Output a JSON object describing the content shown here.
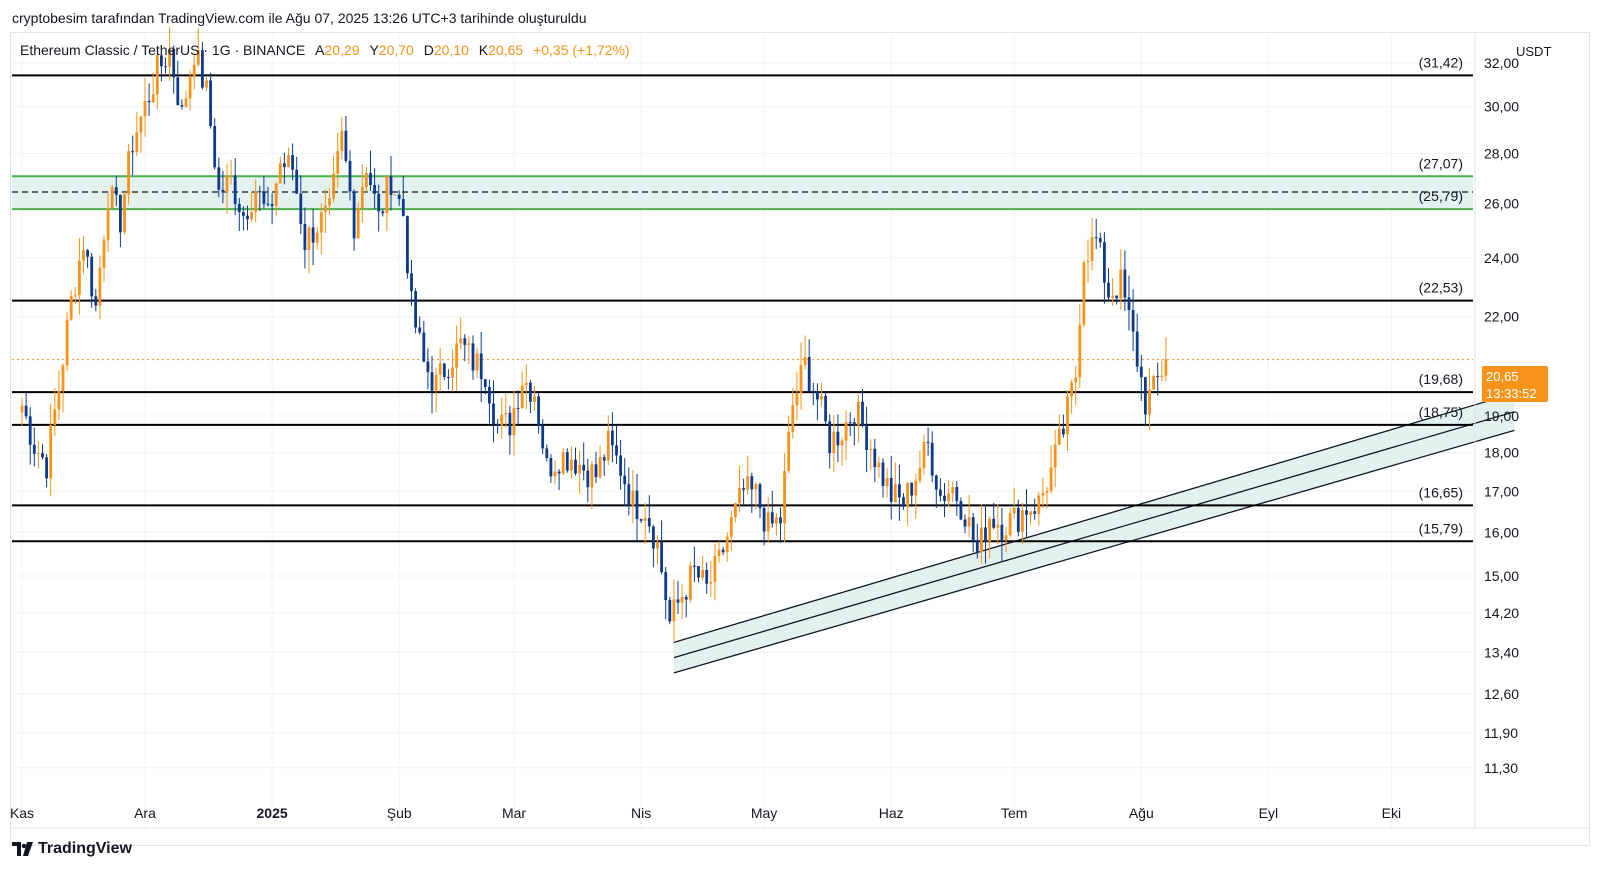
{
  "header": {
    "text": "cryptobesim tarafından TradingView.com ile Ağu 07, 2025 13:26 UTC+3 tarihinde oluşturuldu"
  },
  "legend": {
    "symbol": "Ethereum Classic / TetherUS · 1G · BINANCE",
    "o_label": "A",
    "o_value": "20,29",
    "h_label": "Y",
    "h_value": "20,70",
    "l_label": "D",
    "l_value": "20,10",
    "c_label": "K",
    "c_value": "20,65",
    "change": "+0,35 (+1,72%)"
  },
  "price_axis": {
    "currency": "USDT",
    "ticks": [
      "32,00",
      "30,00",
      "28,00",
      "26,00",
      "24,00",
      "22,00",
      "19,00",
      "18,00",
      "17,00",
      "16,00",
      "15,00",
      "14,20",
      "13,40",
      "12,60",
      "11,90",
      "11,30"
    ]
  },
  "current_price": {
    "price": "20,65",
    "countdown": "13:33:52"
  },
  "time_axis": [
    "Kas",
    "Ara",
    "2025",
    "Şub",
    "Mar",
    "Nis",
    "May",
    "Haz",
    "Tem",
    "Ağu",
    "Eyl",
    "Eki"
  ],
  "footer": {
    "brand": "TradingView"
  },
  "colors": {
    "up": "#f7931a",
    "down": "#0d3a8f",
    "level": "#000000",
    "zone_border": "#4caf50",
    "zone_fill": "#e3f2ef",
    "channel_fill": "#e3f2ef"
  },
  "chart_data": {
    "type": "candlestick",
    "title": "",
    "xlabel": "",
    "ylabel": "",
    "ylim": [
      11.0,
      33.5
    ],
    "y_scale": "log",
    "grid": true,
    "horizontal_levels": [
      {
        "value": 31.42,
        "label": "(31,42)"
      },
      {
        "value": 27.07,
        "label": "(27,07)"
      },
      {
        "value": 25.79,
        "label": "(25,79)"
      },
      {
        "value": 22.53,
        "label": "(22,53)"
      },
      {
        "value": 19.68,
        "label": "(19,68)"
      },
      {
        "value": 18.75,
        "label": "(18,75)"
      },
      {
        "value": 16.65,
        "label": "(16,65)"
      },
      {
        "value": 15.79,
        "label": "(15,79)"
      }
    ],
    "resistance_zone": {
      "upper": 27.07,
      "lower": 25.79,
      "mid": 26.45
    },
    "rising_channel": {
      "start": {
        "date": "2025-04-09",
        "upper": 13.6,
        "lower": 13.0
      },
      "end": {
        "date": "2025-10-31",
        "upper": 19.65,
        "lower": 18.6
      }
    },
    "series": [
      {
        "name": "",
        "points": [
          [
            "2024-11-01",
            19.3
          ],
          [
            "2024-11-04",
            18.2
          ],
          [
            "2024-11-07",
            17.7
          ],
          [
            "2024-11-10",
            19.8
          ],
          [
            "2024-11-13",
            22.5
          ],
          [
            "2024-11-16",
            24.6
          ],
          [
            "2024-11-19",
            22.3
          ],
          [
            "2024-11-22",
            26.4
          ],
          [
            "2024-11-25",
            25.4
          ],
          [
            "2024-11-28",
            28.5
          ],
          [
            "2024-12-01",
            30.0
          ],
          [
            "2024-12-04",
            31.6
          ],
          [
            "2024-12-07",
            32.6
          ],
          [
            "2024-12-10",
            29.6
          ],
          [
            "2024-12-13",
            32.6
          ],
          [
            "2024-12-16",
            30.6
          ],
          [
            "2024-12-19",
            26.4
          ],
          [
            "2024-12-22",
            26.9
          ],
          [
            "2024-12-25",
            25.6
          ],
          [
            "2024-12-28",
            26.6
          ],
          [
            "2024-12-31",
            25.4
          ],
          [
            "2025-01-03",
            27.6
          ],
          [
            "2025-01-06",
            27.4
          ],
          [
            "2025-01-09",
            24.6
          ],
          [
            "2025-01-12",
            25.2
          ],
          [
            "2025-01-15",
            25.6
          ],
          [
            "2025-01-18",
            28.6
          ],
          [
            "2025-01-21",
            25.3
          ],
          [
            "2025-01-24",
            27.6
          ],
          [
            "2025-01-27",
            25.4
          ],
          [
            "2025-01-30",
            27.0
          ],
          [
            "2025-02-02",
            25.6
          ],
          [
            "2025-02-04",
            22.3
          ],
          [
            "2025-02-07",
            20.5
          ],
          [
            "2025-02-10",
            19.9
          ],
          [
            "2025-02-13",
            20.6
          ],
          [
            "2025-02-16",
            21.1
          ],
          [
            "2025-02-19",
            20.6
          ],
          [
            "2025-02-22",
            20.3
          ],
          [
            "2025-02-25",
            18.7
          ],
          [
            "2025-02-28",
            18.8
          ],
          [
            "2025-03-03",
            20.1
          ],
          [
            "2025-03-06",
            19.7
          ],
          [
            "2025-03-09",
            17.6
          ],
          [
            "2025-03-12",
            17.9
          ],
          [
            "2025-03-15",
            17.9
          ],
          [
            "2025-03-18",
            17.6
          ],
          [
            "2025-03-21",
            17.4
          ],
          [
            "2025-03-24",
            18.2
          ],
          [
            "2025-03-27",
            17.6
          ],
          [
            "2025-03-30",
            16.7
          ],
          [
            "2025-04-02",
            16.6
          ],
          [
            "2025-04-05",
            15.7
          ],
          [
            "2025-04-08",
            14.0
          ],
          [
            "2025-04-11",
            14.6
          ],
          [
            "2025-04-14",
            15.1
          ],
          [
            "2025-04-17",
            14.7
          ],
          [
            "2025-04-20",
            15.3
          ],
          [
            "2025-04-23",
            16.2
          ],
          [
            "2025-04-26",
            17.0
          ],
          [
            "2025-04-29",
            16.9
          ],
          [
            "2025-05-02",
            16.1
          ],
          [
            "2025-05-05",
            16.3
          ],
          [
            "2025-05-08",
            19.3
          ],
          [
            "2025-05-11",
            20.5
          ],
          [
            "2025-05-14",
            19.5
          ],
          [
            "2025-05-17",
            18.3
          ],
          [
            "2025-05-20",
            18.6
          ],
          [
            "2025-05-23",
            19.2
          ],
          [
            "2025-05-26",
            18.5
          ],
          [
            "2025-05-29",
            17.6
          ],
          [
            "2025-06-01",
            16.9
          ],
          [
            "2025-06-04",
            16.7
          ],
          [
            "2025-06-07",
            17.4
          ],
          [
            "2025-06-10",
            18.2
          ],
          [
            "2025-06-13",
            16.9
          ],
          [
            "2025-06-16",
            17.1
          ],
          [
            "2025-06-19",
            16.5
          ],
          [
            "2025-06-22",
            15.5
          ],
          [
            "2025-06-25",
            16.4
          ],
          [
            "2025-06-28",
            16.2
          ],
          [
            "2025-07-01",
            16.3
          ],
          [
            "2025-07-04",
            16.6
          ],
          [
            "2025-07-07",
            16.7
          ],
          [
            "2025-07-10",
            17.5
          ],
          [
            "2025-07-13",
            18.6
          ],
          [
            "2025-07-16",
            20.2
          ],
          [
            "2025-07-18",
            24.2
          ],
          [
            "2025-07-21",
            24.6
          ],
          [
            "2025-07-24",
            22.8
          ],
          [
            "2025-07-27",
            23.1
          ],
          [
            "2025-07-30",
            21.3
          ],
          [
            "2025-08-02",
            19.4
          ],
          [
            "2025-08-04",
            19.7
          ],
          [
            "2025-08-07",
            20.65
          ]
        ]
      }
    ]
  }
}
